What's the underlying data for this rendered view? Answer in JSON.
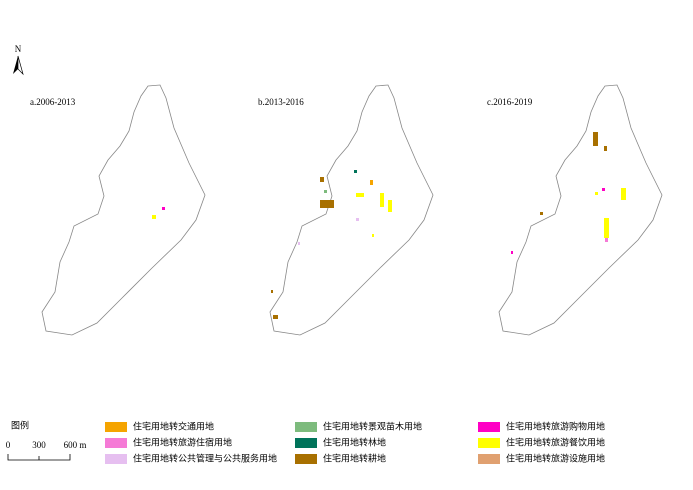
{
  "north": "N",
  "panels": [
    {
      "label": "a.2006-2013"
    },
    {
      "label": "b.2013-2016"
    },
    {
      "label": "c.2016-2019"
    }
  ],
  "legend": {
    "title": "图例",
    "items": [
      {
        "label": "住宅用地转交通用地",
        "color": "#f5a400"
      },
      {
        "label": "住宅用地转旅游住宿用地",
        "color": "#f57ad6"
      },
      {
        "label": "住宅用地转公共管理与公共服务用地",
        "color": "#e6bff0"
      },
      {
        "label": "住宅用地转景观苗木用地",
        "color": "#7dbb7d"
      },
      {
        "label": "住宅用地转林地",
        "color": "#00735a"
      },
      {
        "label": "住宅用地转耕地",
        "color": "#a87000"
      },
      {
        "label": "住宅用地转旅游购物用地",
        "color": "#ff00c5"
      },
      {
        "label": "住宅用地转旅游餐饮用地",
        "color": "#ffff00"
      },
      {
        "label": "住宅用地转旅游设施用地",
        "color": "#e0a070"
      }
    ]
  },
  "scale_bar": {
    "labels": [
      "0",
      "300",
      "600 m"
    ]
  }
}
